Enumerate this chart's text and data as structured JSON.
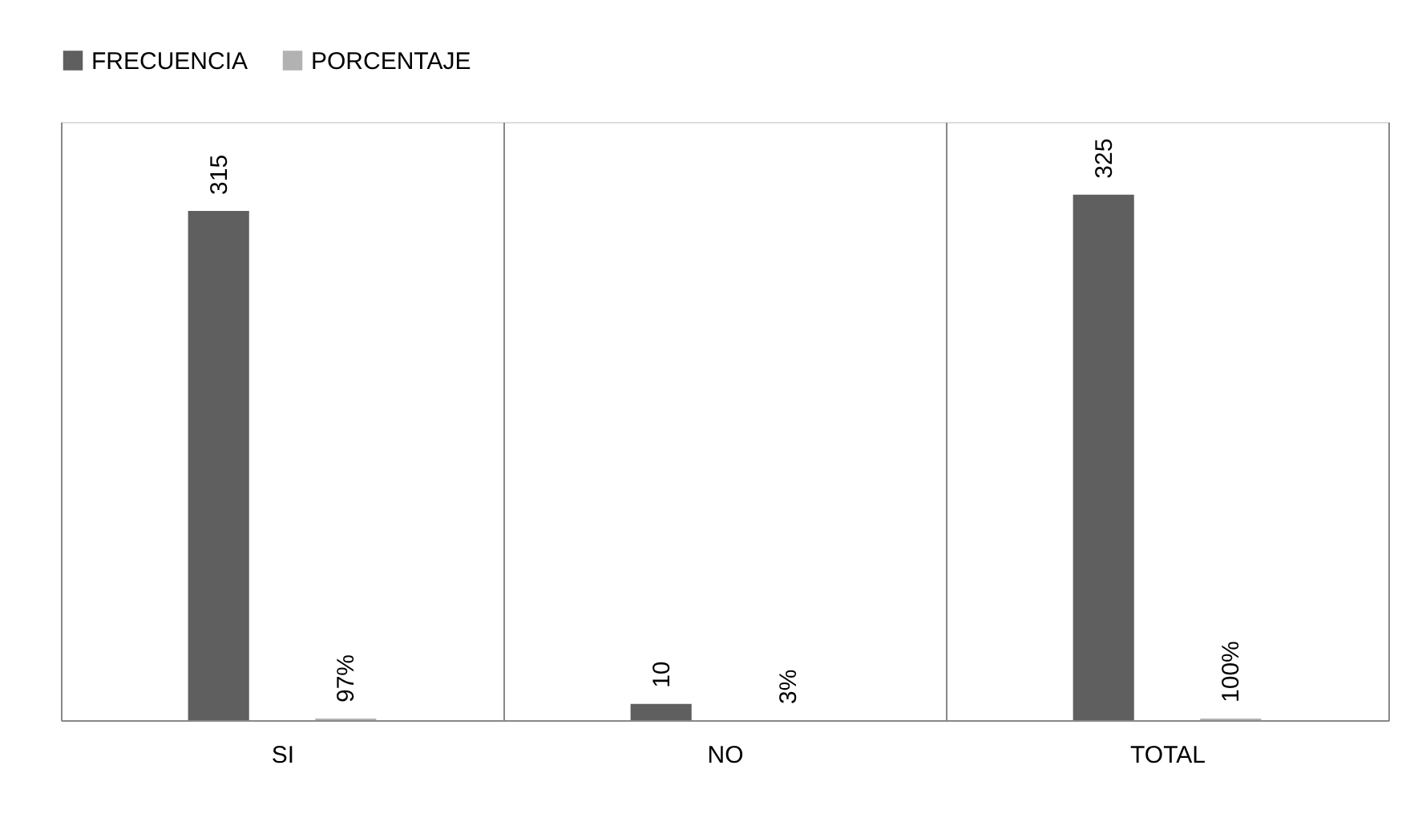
{
  "chart_data": {
    "type": "bar",
    "categories": [
      "SI",
      "NO",
      "TOTAL"
    ],
    "series": [
      {
        "name": "FRECUENCIA",
        "color": "#5f5f5f",
        "values": [
          315,
          10,
          325
        ],
        "value_labels": [
          "315",
          "10",
          "325"
        ]
      },
      {
        "name": "PORCENTAJE",
        "color": "#b2b2b2",
        "values": [
          0.97,
          0.03,
          1
        ],
        "value_labels": [
          "97%",
          "3%",
          "100%"
        ]
      }
    ],
    "ylim": [
      0,
      370
    ],
    "tick_labels": "x",
    "grid": "x",
    "legend": "top"
  }
}
